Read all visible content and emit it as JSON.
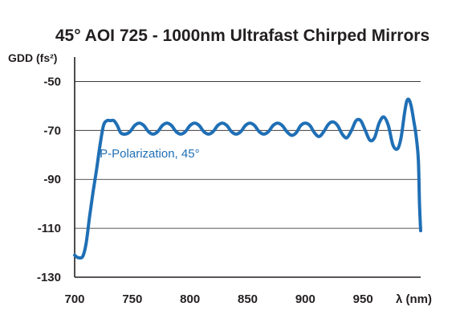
{
  "chart_data": {
    "type": "line",
    "title": "45° AOI 725 - 1000nm Ultrafast Chirped Mirrors",
    "ylabel": "GDD (fs²)",
    "xlabel": "λ (nm)",
    "xlim": [
      700,
      1000
    ],
    "ylim": [
      -130,
      -40
    ],
    "x_ticks": [
      700,
      750,
      800,
      850,
      900,
      950
    ],
    "x_tick_labels": [
      "700",
      "750",
      "800",
      "850",
      "900",
      "950"
    ],
    "y_ticks": [
      -50,
      -70,
      -90,
      -110,
      -130
    ],
    "y_tick_labels": [
      "-50",
      "-70",
      "-90",
      "-110",
      "-130"
    ],
    "grid": "horizontal",
    "series": [
      {
        "name": "P-Polarization, 45°",
        "color": "#1f6fb5",
        "x": [
          700,
          703,
          707,
          710,
          713,
          716,
          719,
          722,
          725,
          728,
          731,
          734,
          737,
          740,
          744,
          748,
          752,
          756,
          760,
          764,
          768,
          772,
          776,
          780,
          784,
          788,
          792,
          796,
          800,
          804,
          808,
          812,
          816,
          820,
          824,
          828,
          832,
          836,
          840,
          844,
          848,
          852,
          856,
          860,
          864,
          868,
          872,
          876,
          880,
          884,
          888,
          892,
          896,
          900,
          904,
          908,
          912,
          916,
          920,
          924,
          928,
          932,
          936,
          940,
          944,
          948,
          952,
          956,
          960,
          964,
          968,
          972,
          976,
          980,
          983,
          986,
          988,
          990,
          992,
          994,
          996,
          998,
          999,
          1000
        ],
        "y": [
          -121,
          -122,
          -121.5,
          -116,
          -105,
          -95,
          -86,
          -76,
          -68,
          -66,
          -66,
          -66,
          -68,
          -71,
          -71.5,
          -70.5,
          -68,
          -67,
          -68,
          -70.5,
          -71.5,
          -70.5,
          -68,
          -67,
          -68,
          -70.5,
          -71.5,
          -70.5,
          -68,
          -67,
          -68,
          -70.5,
          -71.5,
          -70.5,
          -68,
          -67,
          -68,
          -70.5,
          -71.5,
          -70.5,
          -68,
          -67,
          -68,
          -70.5,
          -71.5,
          -70.5,
          -68,
          -67,
          -68,
          -70.5,
          -72,
          -71,
          -68,
          -67,
          -68,
          -71,
          -72.5,
          -70.5,
          -67.5,
          -66.5,
          -68,
          -71.5,
          -73,
          -70,
          -66,
          -66,
          -70,
          -74,
          -73,
          -67,
          -64.5,
          -68,
          -76,
          -77.5,
          -73,
          -63,
          -58,
          -57.5,
          -60.5,
          -66,
          -72,
          -82,
          -100,
          -111
        ]
      }
    ],
    "annotations": [
      {
        "text": "P-Polarization, 45°",
        "x": 765,
        "y": -81
      }
    ]
  }
}
